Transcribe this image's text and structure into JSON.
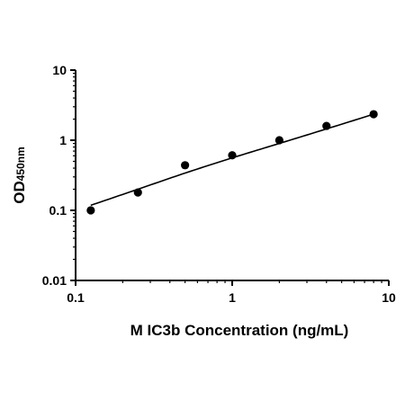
{
  "chart_data": {
    "type": "scatter",
    "title": "",
    "xlabel": "M IC3b Concentration (ng/mL)",
    "ylabel": "OD",
    "ylabel_subscript": "450nm",
    "x_scale": "log",
    "y_scale": "log",
    "xlim": [
      0.1,
      10
    ],
    "ylim": [
      0.01,
      10
    ],
    "x_ticks": [
      0.1,
      1,
      10
    ],
    "x_tick_labels": [
      "0.1",
      "1",
      "10"
    ],
    "y_ticks": [
      0.01,
      0.1,
      1,
      10
    ],
    "y_tick_labels": [
      "0.01",
      "0.1",
      "1",
      "10"
    ],
    "grid": false,
    "legend": "none",
    "series": [
      {
        "x": [
          0.125,
          0.25,
          0.5,
          1,
          2,
          4,
          8
        ],
        "y": [
          0.1,
          0.18,
          0.44,
          0.61,
          1.0,
          1.6,
          2.35
        ]
      }
    ],
    "fit_curve": {
      "x": [
        0.125,
        0.25,
        0.5,
        1,
        2,
        4,
        8
      ],
      "y": [
        0.118,
        0.2,
        0.34,
        0.56,
        0.9,
        1.45,
        2.35
      ]
    },
    "colors": {
      "points": "#000000",
      "curve": "#000000",
      "axes": "#000000"
    }
  }
}
